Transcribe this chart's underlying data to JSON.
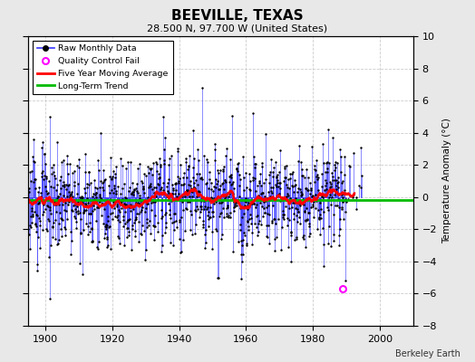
{
  "title": "BEEVILLE, TEXAS",
  "subtitle": "28.500 N, 97.700 W (United States)",
  "ylabel": "Temperature Anomaly (°C)",
  "attribution": "Berkeley Earth",
  "ylim": [
    -8,
    10
  ],
  "xlim": [
    1895,
    2010
  ],
  "xticks": [
    1900,
    1920,
    1940,
    1960,
    1980,
    2000
  ],
  "yticks": [
    -8,
    -6,
    -4,
    -2,
    0,
    2,
    4,
    6,
    8,
    10
  ],
  "start_year": 1895,
  "end_year": 1995,
  "seed": 123,
  "qc_fail_year": 1989,
  "qc_fail_value": -5.7,
  "background_color": "#e8e8e8",
  "plot_bg_color": "#ffffff",
  "raw_line_color": "#3333ff",
  "raw_marker_color": "#000000",
  "moving_avg_color": "#ff0000",
  "trend_color": "#00bb00",
  "qc_color": "#ff00ff",
  "grid_color": "#cccccc"
}
